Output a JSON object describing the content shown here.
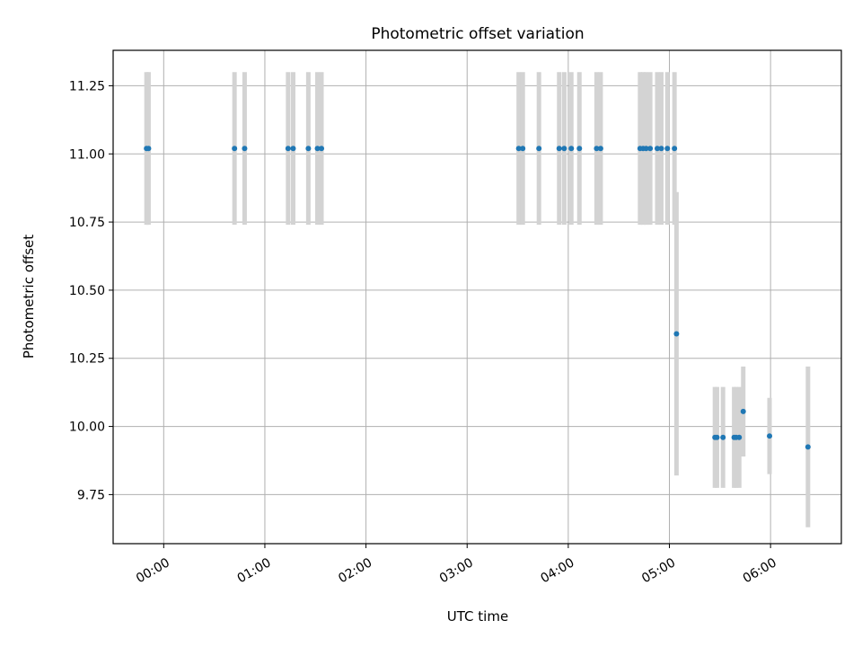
{
  "chart_data": {
    "type": "scatter",
    "title": "Photometric offset variation",
    "xlabel": "UTC time",
    "ylabel": "Photometric offset",
    "grid": true,
    "x_unit": "hours UTC",
    "xlim": [
      -0.5,
      6.7
    ],
    "ylim": [
      9.57,
      11.38
    ],
    "x_ticks": [
      {
        "value": 0,
        "label": "00:00"
      },
      {
        "value": 1,
        "label": "01:00"
      },
      {
        "value": 2,
        "label": "02:00"
      },
      {
        "value": 3,
        "label": "03:00"
      },
      {
        "value": 4,
        "label": "04:00"
      },
      {
        "value": 5,
        "label": "05:00"
      },
      {
        "value": 6,
        "label": "06:00"
      }
    ],
    "y_ticks": [
      {
        "value": 9.75,
        "label": "9.75"
      },
      {
        "value": 10.0,
        "label": "10.00"
      },
      {
        "value": 10.25,
        "label": "10.25"
      },
      {
        "value": 10.5,
        "label": "10.50"
      },
      {
        "value": 10.75,
        "label": "10.75"
      },
      {
        "value": 11.0,
        "label": "11.00"
      },
      {
        "value": 11.25,
        "label": "11.25"
      }
    ],
    "colors": {
      "point": "#1f77b4",
      "errorbar": "#d3d3d3",
      "grid": "#b0b0b0"
    },
    "points": [
      {
        "x": -0.17,
        "y": 11.02,
        "err": 0.28
      },
      {
        "x": -0.15,
        "y": 11.02,
        "err": 0.28
      },
      {
        "x": 0.7,
        "y": 11.02,
        "err": 0.28
      },
      {
        "x": 0.8,
        "y": 11.02,
        "err": 0.28
      },
      {
        "x": 1.23,
        "y": 11.02,
        "err": 0.28
      },
      {
        "x": 1.28,
        "y": 11.02,
        "err": 0.28
      },
      {
        "x": 1.43,
        "y": 11.02,
        "err": 0.28
      },
      {
        "x": 1.52,
        "y": 11.02,
        "err": 0.28
      },
      {
        "x": 1.56,
        "y": 11.02,
        "err": 0.28
      },
      {
        "x": 3.51,
        "y": 11.02,
        "err": 0.28
      },
      {
        "x": 3.55,
        "y": 11.02,
        "err": 0.28
      },
      {
        "x": 3.71,
        "y": 11.02,
        "err": 0.28
      },
      {
        "x": 3.91,
        "y": 11.02,
        "err": 0.28
      },
      {
        "x": 3.96,
        "y": 11.02,
        "err": 0.28
      },
      {
        "x": 4.03,
        "y": 11.02,
        "err": 0.28
      },
      {
        "x": 4.11,
        "y": 11.02,
        "err": 0.28
      },
      {
        "x": 4.28,
        "y": 11.02,
        "err": 0.28
      },
      {
        "x": 4.32,
        "y": 11.02,
        "err": 0.28
      },
      {
        "x": 4.71,
        "y": 11.02,
        "err": 0.28
      },
      {
        "x": 4.74,
        "y": 11.02,
        "err": 0.28
      },
      {
        "x": 4.77,
        "y": 11.02,
        "err": 0.28
      },
      {
        "x": 4.81,
        "y": 11.02,
        "err": 0.28
      },
      {
        "x": 4.88,
        "y": 11.02,
        "err": 0.28
      },
      {
        "x": 4.92,
        "y": 11.02,
        "err": 0.28
      },
      {
        "x": 4.98,
        "y": 11.02,
        "err": 0.28
      },
      {
        "x": 5.05,
        "y": 11.02,
        "err": 0.28
      },
      {
        "x": 5.07,
        "y": 10.34,
        "err": 0.52
      },
      {
        "x": 5.45,
        "y": 9.96,
        "err": 0.185
      },
      {
        "x": 5.47,
        "y": 9.96,
        "err": 0.185
      },
      {
        "x": 5.53,
        "y": 9.96,
        "err": 0.185
      },
      {
        "x": 5.64,
        "y": 9.96,
        "err": 0.185
      },
      {
        "x": 5.66,
        "y": 9.96,
        "err": 0.185
      },
      {
        "x": 5.69,
        "y": 9.96,
        "err": 0.185
      },
      {
        "x": 5.73,
        "y": 10.055,
        "err": 0.165
      },
      {
        "x": 5.99,
        "y": 9.965,
        "err": 0.14
      },
      {
        "x": 6.37,
        "y": 9.925,
        "err": 0.295
      }
    ]
  }
}
